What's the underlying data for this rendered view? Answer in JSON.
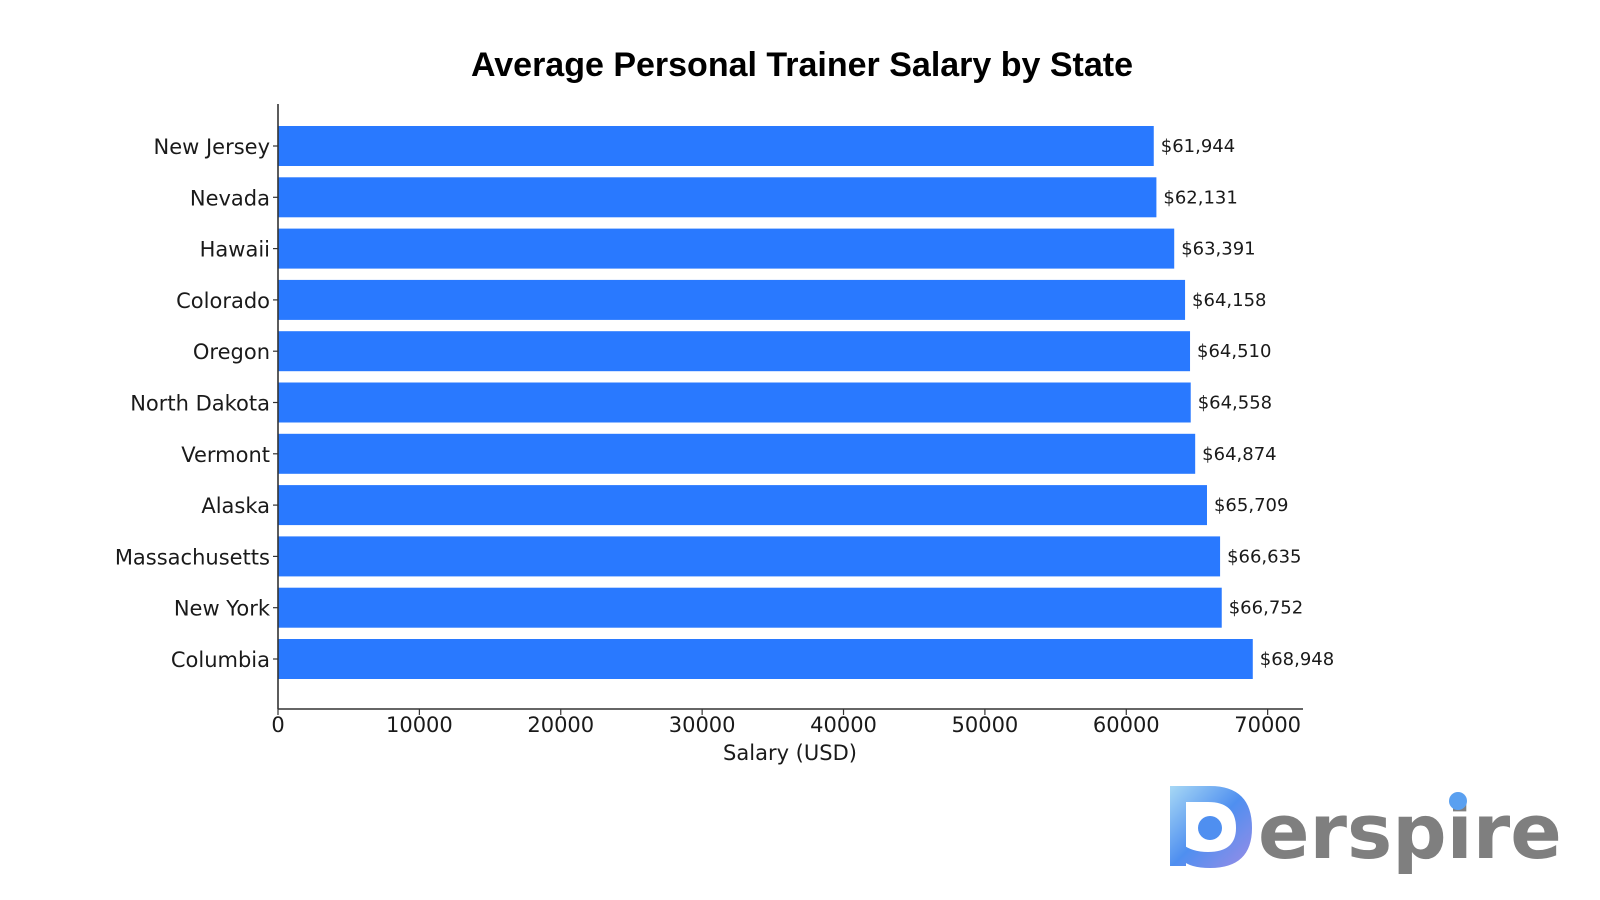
{
  "chart_data": {
    "type": "bar",
    "orientation": "horizontal",
    "title": "Average Personal Trainer Salary by State",
    "xlabel": "Salary (USD)",
    "ylabel": "",
    "categories": [
      "New Jersey",
      "Nevada",
      "Hawaii",
      "Colorado",
      "Oregon",
      "North Dakota",
      "Vermont",
      "Alaska",
      "Massachusetts",
      "New York",
      "Columbia"
    ],
    "values": [
      61944,
      62131,
      63391,
      64158,
      64510,
      64558,
      64874,
      65709,
      66635,
      66752,
      68948
    ],
    "value_labels": [
      "$61,944",
      "$62,131",
      "$63,391",
      "$64,158",
      "$64,510",
      "$64,558",
      "$64,874",
      "$65,709",
      "$66,635",
      "$66,752",
      "$68,948"
    ],
    "xticks": [
      "0",
      "10000",
      "20000",
      "30000",
      "40000",
      "50000",
      "60000",
      "70000"
    ],
    "xlim": [
      0,
      72500
    ],
    "bar_color": "#2979ff",
    "grid": false,
    "legend": "none"
  },
  "watermark": {
    "text": "erspire",
    "logo_colors": [
      "#a7d8f5",
      "#4f8ff0",
      "#9a8ce6"
    ],
    "text_color": "#7f7f7f"
  }
}
